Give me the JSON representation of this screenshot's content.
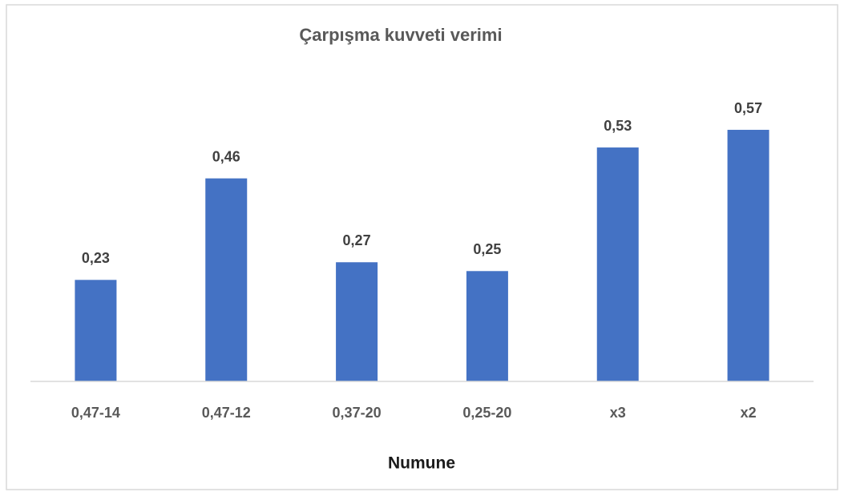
{
  "chart_data": {
    "type": "bar",
    "title": "Çarpışma kuvveti verimi",
    "x_label": "Numune",
    "categories": [
      "0,47-14",
      "0,47-12",
      "0,37-20",
      "0,25-20",
      "x3",
      "x2"
    ],
    "values": [
      0.23,
      0.46,
      0.27,
      0.25,
      0.53,
      0.57
    ],
    "value_labels": [
      "0,23",
      "0,46",
      "0,27",
      "0,25",
      "0,53",
      "0,57"
    ],
    "color": "#4472c4",
    "ylim": [
      0,
      0.6
    ]
  }
}
